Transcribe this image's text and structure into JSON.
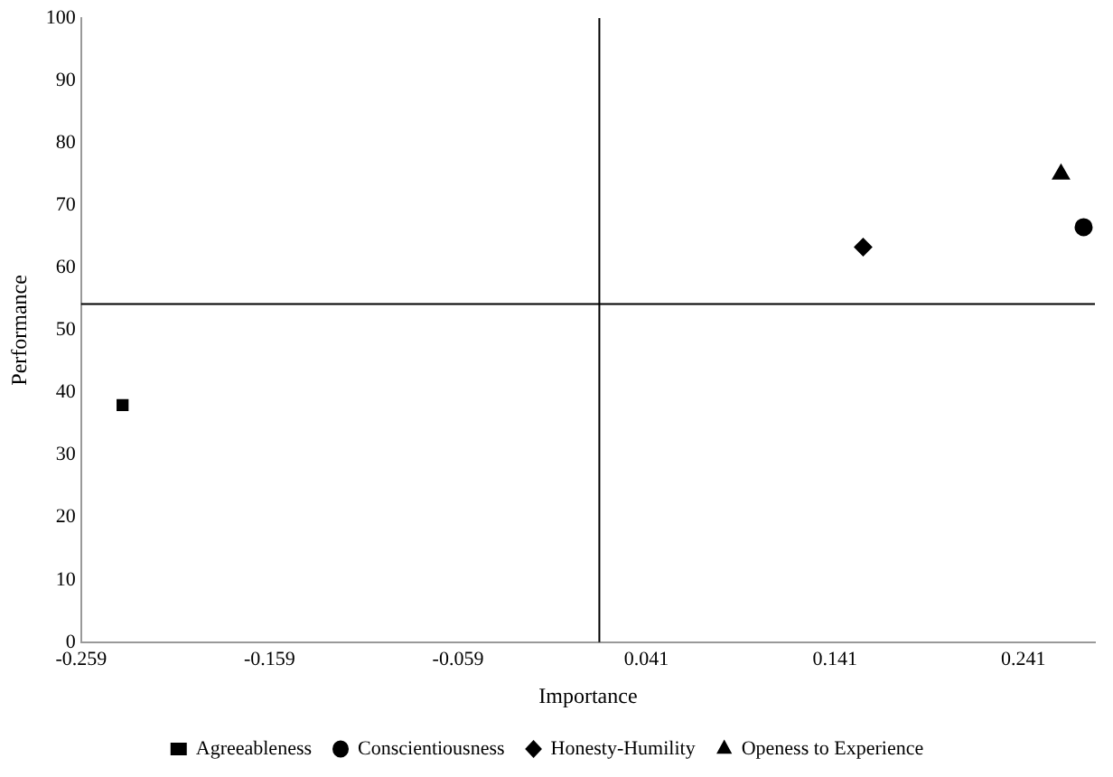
{
  "chart_data": {
    "type": "scatter",
    "xlabel": "Importance",
    "ylabel": "Performance",
    "xlim": [
      -0.259,
      0.279
    ],
    "xticks": [
      -0.259,
      -0.159,
      -0.059,
      0.041,
      0.141,
      0.241
    ],
    "ylim": [
      0,
      100
    ],
    "yticks": [
      0,
      10,
      20,
      30,
      40,
      50,
      60,
      70,
      80,
      90,
      100
    ],
    "grid": false,
    "legend": "bottom",
    "ref_lines": [
      {
        "axis": "x",
        "value": 0.016,
        "color": "#000000"
      },
      {
        "axis": "y",
        "value": 54.2,
        "color": "#000000"
      }
    ],
    "series": [
      {
        "name": "Agreeableness",
        "color": "#000000",
        "marker": "square",
        "x": [
          -0.237
        ],
        "values": [
          38
        ]
      },
      {
        "name": "Conscientiousness",
        "color": "#000000",
        "marker": "circle",
        "x": [
          0.273
        ],
        "values": [
          66.5
        ]
      },
      {
        "name": "Honesty-Humility",
        "color": "#000000",
        "marker": "diamond",
        "x": [
          0.156
        ],
        "values": [
          63.3
        ]
      },
      {
        "name": "Openess to Experience",
        "color": "#000000",
        "marker": "triangle",
        "x": [
          0.261
        ],
        "values": [
          75
        ]
      }
    ]
  }
}
